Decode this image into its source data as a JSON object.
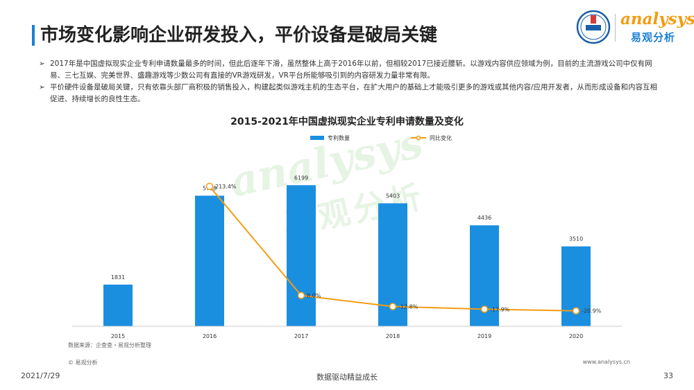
{
  "header": {
    "title": "市场变化影响企业研发投入，平价设备是破局关键",
    "logo_china_text": "CHINA JOY 2021",
    "logo_brand": "analysys",
    "logo_cn": "易观分析"
  },
  "bullets": [
    "2017年是中国虚拟现实企业专利申请数量最多的时间，但此后逐年下滑，虽然整体上高于2016年以前，但相较2017已接近腰斩。以游戏内容供应领域为例，目前的主流游戏公司中仅有网易、三七互娱、完美世界、盛趣游戏等少数公司有直接的VR游戏研发，VR平台所能够吸引到的内容研发力量非常有限。",
    "平价硬件设备是破局关键，只有依靠头部厂商积极的销售投入，构建起类似游戏主机的生态平台，在扩大用户的基础上才能吸引更多的游戏或其他内容/应用开发者，从而形成设备和内容互相促进、持续增长的良性生态。"
  ],
  "watermark": {
    "brand": "analysys",
    "cn": "易观分析"
  },
  "chart_data": {
    "type": "bar",
    "title": "2015-2021年中国虚拟现实企业专利申请数量及变化",
    "categories": [
      "2015",
      "2016",
      "2017",
      "2018",
      "2019",
      "2020"
    ],
    "series": [
      {
        "name": "专利数量",
        "kind": "bar",
        "axis": "left",
        "values": [
          1831,
          5738,
          6199,
          5403,
          4436,
          3510
        ],
        "labels": [
          "1831",
          "5738",
          "6199",
          "5403",
          "4436",
          "3510"
        ]
      },
      {
        "name": "同比变化",
        "kind": "line",
        "axis": "right",
        "values": [
          null,
          213.4,
          8.0,
          -12.8,
          -17.9,
          -20.9
        ],
        "labels": [
          "",
          "213.4%",
          "8.0%",
          "-12.8%",
          "-17.9%",
          "-20.9%"
        ]
      }
    ],
    "ylim": [
      0,
      7000
    ],
    "y2lim": [
      -50,
      250
    ],
    "legend_position": "top",
    "grid": false,
    "colors": {
      "bar": "#1a8fe0",
      "line": "#f39c12"
    }
  },
  "footer": {
    "source": "数据来源：企查查・易观分析整理",
    "copyright": "© 易观分析",
    "website": "www.analysys.cn",
    "date": "2021/7/29",
    "slogan": "数据驱动精益成长",
    "page_number": "33"
  }
}
